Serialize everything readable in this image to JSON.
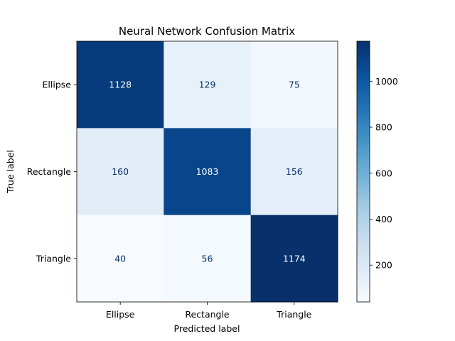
{
  "chart_data": {
    "type": "heatmap",
    "title": "Neural Network Confusion Matrix",
    "xlabel": "Predicted label",
    "ylabel": "True label",
    "x_categories": [
      "Ellipse",
      "Rectangle",
      "Triangle"
    ],
    "y_categories": [
      "Ellipse",
      "Rectangle",
      "Triangle"
    ],
    "values": [
      [
        1128,
        129,
        75
      ],
      [
        160,
        1083,
        156
      ],
      [
        40,
        56,
        1174
      ]
    ],
    "colormap": "Blues",
    "colorbar": {
      "range": [
        40,
        1174
      ],
      "ticks": [
        200,
        400,
        600,
        800,
        1000
      ]
    },
    "grid": false
  }
}
